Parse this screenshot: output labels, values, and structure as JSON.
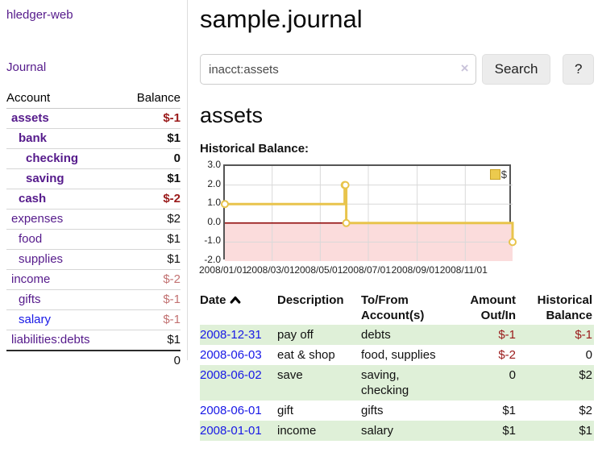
{
  "sidebar": {
    "app_title": "hledger-web",
    "journal_label": "Journal",
    "accounts_table": {
      "headers": {
        "account": "Account",
        "balance": "Balance"
      },
      "rows": [
        {
          "name": "assets",
          "balance": "$-1",
          "level": 0,
          "bold": true,
          "link_color": "purple",
          "balance_style": "neg-strong"
        },
        {
          "name": "bank",
          "balance": "$1",
          "level": 1,
          "bold": true,
          "link_color": "purple",
          "balance_style": "bold-black"
        },
        {
          "name": "checking",
          "balance": "0",
          "level": 2,
          "bold": true,
          "link_color": "purple",
          "balance_style": "bold-black"
        },
        {
          "name": "saving",
          "balance": "$1",
          "level": 2,
          "bold": true,
          "link_color": "purple",
          "balance_style": "bold-black"
        },
        {
          "name": "cash",
          "balance": "$-2",
          "level": 1,
          "bold": true,
          "link_color": "purple",
          "balance_style": "neg-strong"
        },
        {
          "name": "expenses",
          "balance": "$2",
          "level": 0,
          "bold": false,
          "link_color": "purple",
          "balance_style": "black"
        },
        {
          "name": "food",
          "balance": "$1",
          "level": 1,
          "bold": false,
          "link_color": "purple",
          "balance_style": "black"
        },
        {
          "name": "supplies",
          "balance": "$1",
          "level": 1,
          "bold": false,
          "link_color": "purple",
          "balance_style": "black"
        },
        {
          "name": "income",
          "balance": "$-2",
          "level": 0,
          "bold": false,
          "link_color": "purple",
          "balance_style": "neg-muted"
        },
        {
          "name": "gifts",
          "balance": "$-1",
          "level": 1,
          "bold": false,
          "link_color": "purple",
          "balance_style": "neg-muted"
        },
        {
          "name": "salary",
          "balance": "$-1",
          "level": 1,
          "bold": false,
          "link_color": "blue",
          "balance_style": "neg-muted"
        },
        {
          "name": "liabilities:debts",
          "balance": "$1",
          "level": 0,
          "bold": false,
          "link_color": "purple",
          "balance_style": "black"
        }
      ],
      "total": "0"
    }
  },
  "main": {
    "title": "sample.journal",
    "search": {
      "value": "inacct:assets",
      "clear_icon": "×",
      "button_label": "Search",
      "help_label": "?"
    },
    "account_heading": "assets",
    "chart_heading": "Historical Balance:"
  },
  "chart_data": {
    "type": "line",
    "step": "after",
    "title": "Historical Balance",
    "series": [
      {
        "name": "$",
        "x": [
          "2008-01-01",
          "2008-06-01",
          "2008-06-02",
          "2008-06-03",
          "2008-12-31"
        ],
        "x_day_of_year": [
          0,
          152,
          153,
          154,
          365
        ],
        "values": [
          1,
          2,
          2,
          0,
          -1
        ]
      }
    ],
    "x_tick_labels": [
      "2008/01/01",
      "2008/03/01",
      "2008/05/01",
      "2008/07/01",
      "2008/09/01",
      "2008/11/01"
    ],
    "x_tick_days": [
      0,
      60,
      121,
      182,
      244,
      305
    ],
    "x_range_days": [
      0,
      365
    ],
    "y_ticks": [
      3.0,
      2.0,
      1.0,
      0.0,
      -1.0,
      -2.0
    ],
    "ylim": [
      -2,
      3
    ],
    "grid": true,
    "legend": {
      "label": "$",
      "position": "top-right"
    },
    "colors": {
      "line": "#e8c44c",
      "marker_fill": "#ffffff",
      "negative_region": "#fbdcdc",
      "zero_line": "#8b0000",
      "grid": "#d9d9d9",
      "frame": "#555555"
    }
  },
  "register_table": {
    "headers": {
      "date": "Date",
      "date_sort": "ascending",
      "description": "Description",
      "accounts": "To/From Account(s)",
      "amount": "Amount Out/In",
      "balance": "Historical Balance"
    },
    "rows": [
      {
        "date": "2008-12-31",
        "description": "pay off",
        "accounts": "debts",
        "amount": "$-1",
        "amount_negative": true,
        "balance": "$-1",
        "balance_negative": true,
        "shaded": true
      },
      {
        "date": "2008-06-03",
        "description": "eat & shop",
        "accounts": "food, supplies",
        "amount": "$-2",
        "amount_negative": true,
        "balance": "0",
        "balance_negative": false,
        "shaded": false
      },
      {
        "date": "2008-06-02",
        "description": "save",
        "accounts": "saving, checking",
        "amount": "0",
        "amount_negative": false,
        "balance": "$2",
        "balance_negative": false,
        "shaded": true
      },
      {
        "date": "2008-06-01",
        "description": "gift",
        "accounts": "gifts",
        "amount": "$1",
        "amount_negative": false,
        "balance": "$2",
        "balance_negative": false,
        "shaded": false
      },
      {
        "date": "2008-01-01",
        "description": "income",
        "accounts": "salary",
        "amount": "$1",
        "amount_negative": false,
        "balance": "$1",
        "balance_negative": false,
        "shaded": true
      }
    ]
  }
}
